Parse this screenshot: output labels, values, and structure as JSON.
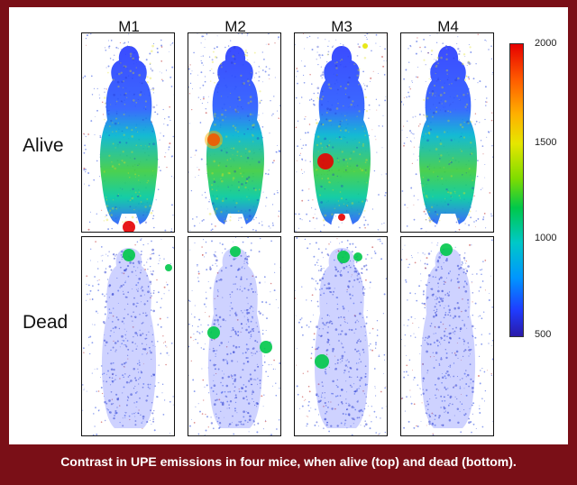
{
  "columns": [
    "M1",
    "M2",
    "M3",
    "M4"
  ],
  "rows": [
    "Alive",
    "Dead"
  ],
  "colorbar": {
    "ticks": [
      "2000",
      "1500",
      "1000",
      "500"
    ],
    "min": 500,
    "max": 2000
  },
  "caption": "Contrast in UPE emissions in four mice, when alive (top) and dead (bottom).",
  "colors": {
    "border": "#7a0f17",
    "high": "#e60000",
    "mid": "#00c84a",
    "low": "#1f3cff"
  }
}
